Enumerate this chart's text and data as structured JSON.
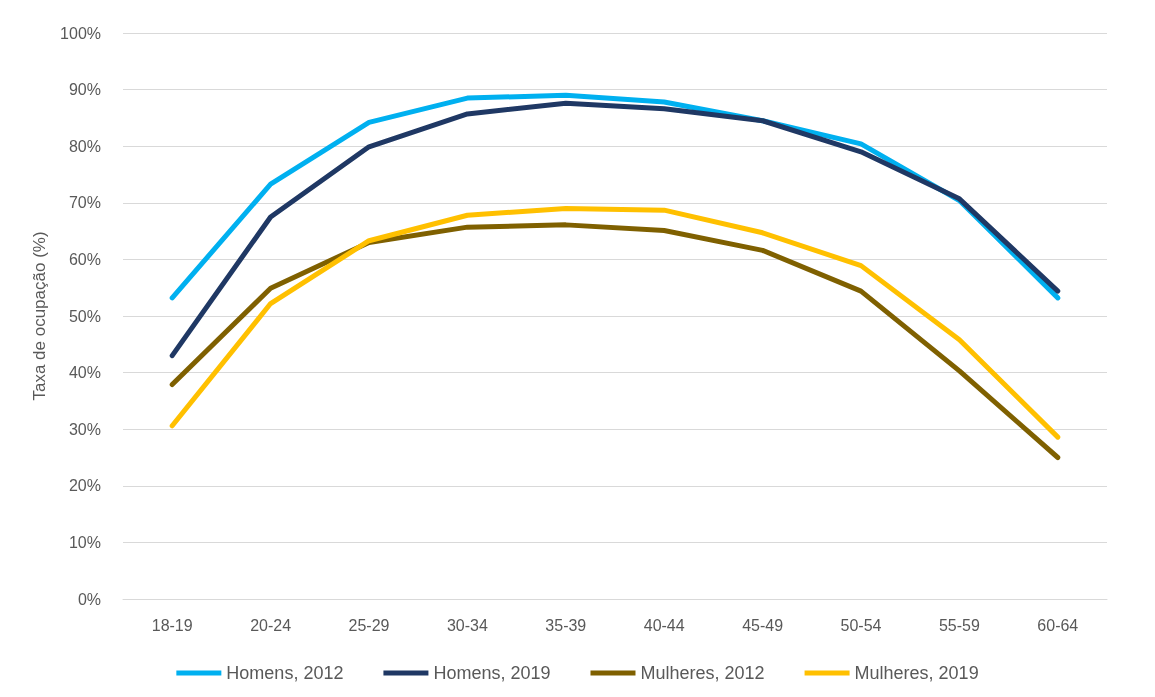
{
  "chart_data": {
    "type": "line",
    "ylabel": "Taxa de ocupação (%)",
    "categories": [
      "18-19",
      "20-24",
      "25-29",
      "30-34",
      "35-39",
      "40-44",
      "45-49",
      "50-54",
      "55-59",
      "60-64"
    ],
    "series": [
      {
        "name": "Homens, 2012",
        "color": "#00b0f0",
        "values": [
          53.2,
          73.3,
          84.2,
          88.5,
          89.0,
          87.8,
          84.5,
          80.4,
          70.4,
          53.2
        ]
      },
      {
        "name": "Homens, 2019",
        "color": "#1f3864",
        "values": [
          43.0,
          67.5,
          79.9,
          85.7,
          87.6,
          86.6,
          84.5,
          79.0,
          70.7,
          54.4
        ]
      },
      {
        "name": "Mulheres, 2012",
        "color": "#7f6000",
        "values": [
          37.9,
          54.9,
          63.0,
          65.7,
          66.1,
          65.1,
          61.6,
          54.4,
          40.3,
          25.0
        ]
      },
      {
        "name": "Mulheres, 2019",
        "color": "#ffc000",
        "values": [
          30.6,
          52.2,
          63.3,
          67.8,
          69.0,
          68.7,
          64.7,
          58.9,
          45.8,
          28.6
        ]
      }
    ],
    "ylim": [
      0,
      100
    ],
    "yticks": [
      {
        "value": 0,
        "label": "0%"
      },
      {
        "value": 10,
        "label": "10%"
      },
      {
        "value": 20,
        "label": "20%"
      },
      {
        "value": 30,
        "label": "30%"
      },
      {
        "value": 40,
        "label": "40%"
      },
      {
        "value": 50,
        "label": "50%"
      },
      {
        "value": 60,
        "label": "60%"
      },
      {
        "value": 70,
        "label": "70%"
      },
      {
        "value": 80,
        "label": "80%"
      },
      {
        "value": 90,
        "label": "90%"
      },
      {
        "value": 100,
        "label": "100%"
      }
    ],
    "grid": "y",
    "legend": "bottom",
    "marker": "none",
    "line_style": "solid"
  }
}
